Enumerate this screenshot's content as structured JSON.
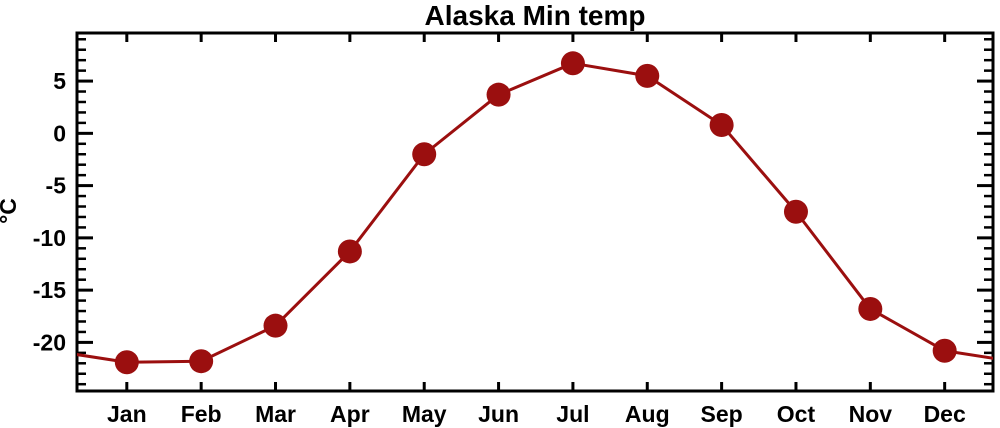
{
  "chart_data": {
    "type": "line",
    "title": "Alaska Min temp",
    "ylabel": "°C",
    "categories": [
      "Jan",
      "Feb",
      "Mar",
      "Apr",
      "May",
      "Jun",
      "Jul",
      "Aug",
      "Sep",
      "Oct",
      "Nov",
      "Dec"
    ],
    "x": [
      1,
      2,
      3,
      4,
      5,
      6,
      7,
      8,
      9,
      10,
      11,
      12
    ],
    "values": [
      -21.9,
      -21.8,
      -18.4,
      -11.3,
      -2.0,
      3.7,
      6.7,
      5.5,
      0.8,
      -7.5,
      -16.8,
      -20.8
    ],
    "xlim": [
      0.33,
      12.65
    ],
    "ylim": [
      -24.65,
      9.6
    ],
    "y_major_ticks": [
      5,
      0,
      -5,
      -10,
      -15,
      -20
    ],
    "y_minor_tick_step": 1,
    "grid": false,
    "legend": false,
    "marker": "circle",
    "marker_radius": 12,
    "line_width": 3,
    "line_color": "#9b0f0f",
    "marker_color": "#9b0f0f",
    "frame_color": "#000000",
    "text_color": "#000000",
    "background_color": "#ffffff",
    "ticks_mirrored_top_right": true,
    "curve_extends_to_frame_edges": true
  }
}
